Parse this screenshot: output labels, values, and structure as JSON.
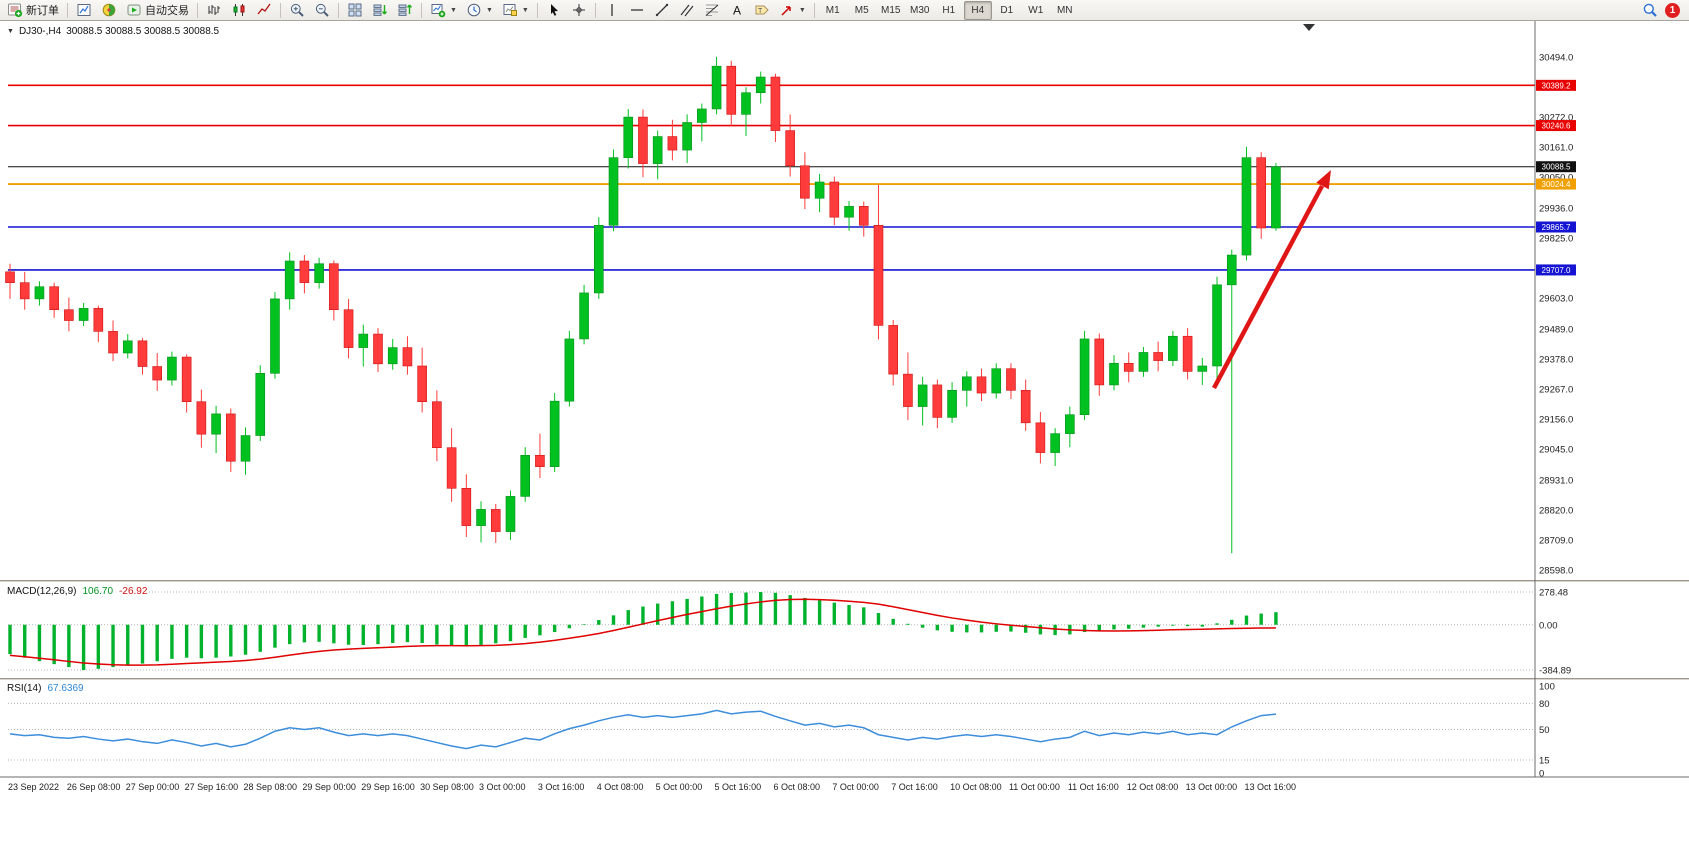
{
  "toolbar": {
    "new_order_label": "新订单",
    "autotrading_label": "自动交易",
    "timeframes": [
      "M1",
      "M5",
      "M15",
      "M30",
      "H1",
      "H4",
      "D1",
      "W1",
      "MN"
    ],
    "active_timeframe": "H4",
    "notification_count": "1"
  },
  "chart_header": {
    "symbol_period": "DJ30-,H4",
    "ohlc": "30088.5 30088.5 30088.5 30088.5"
  },
  "indicators": {
    "macd_name": "MACD(12,26,9)",
    "macd_main": "106.70",
    "macd_signal": "-26.92",
    "rsi_name": "RSI(14)",
    "rsi_value": "67.6369"
  },
  "chart_data": {
    "type": "candlestick",
    "symbol": "DJ30-",
    "timeframe": "H4",
    "current_price": 30088.5,
    "time_labels": [
      "23 Sep 2022",
      "26 Sep 08:00",
      "27 Sep 00:00",
      "27 Sep 16:00",
      "28 Sep 08:00",
      "29 Sep 00:00",
      "29 Sep 16:00",
      "30 Sep 08:00",
      "3 Oct 00:00",
      "3 Oct 16:00",
      "4 Oct 08:00",
      "5 Oct 00:00",
      "5 Oct 16:00",
      "6 Oct 08:00",
      "7 Oct 00:00",
      "7 Oct 16:00",
      "10 Oct 08:00",
      "11 Oct 00:00",
      "11 Oct 16:00",
      "12 Oct 08:00",
      "13 Oct 00:00",
      "13 Oct 16:00"
    ],
    "price_axis_ticks": [
      {
        "price": 30494.0,
        "label": "30494.0"
      },
      {
        "price": 30272.0,
        "label": "30272.0"
      },
      {
        "price": 30161.0,
        "label": "30161.0"
      },
      {
        "price": 30050.0,
        "label": "30050.0"
      },
      {
        "price": 29936.0,
        "label": "29936.0"
      },
      {
        "price": 29825.0,
        "label": "29825.0"
      },
      {
        "price": 29603.0,
        "label": "29603.0"
      },
      {
        "price": 29489.0,
        "label": "29489.0"
      },
      {
        "price": 29378.0,
        "label": "29378.0"
      },
      {
        "price": 29267.0,
        "label": "29267.0"
      },
      {
        "price": 29156.0,
        "label": "29156.0"
      },
      {
        "price": 29045.0,
        "label": "29045.0"
      },
      {
        "price": 28931.0,
        "label": "28931.0"
      },
      {
        "price": 28820.0,
        "label": "28820.0"
      },
      {
        "price": 28709.0,
        "label": "28709.0"
      },
      {
        "price": 28598.0,
        "label": "28598.0"
      }
    ],
    "horizontal_lines": [
      {
        "label": "30389.2",
        "price": 30389.2,
        "color": "#e80000",
        "width": 1.6
      },
      {
        "label": "30240.6",
        "price": 30240.6,
        "color": "#e80000",
        "width": 1.6
      },
      {
        "label": "30088.5",
        "price": 30088.5,
        "color": "#111111",
        "width": 1
      },
      {
        "label": "30024.4",
        "price": 30024.4,
        "color": "#f0a000",
        "width": 1.8
      },
      {
        "label": "29865.7",
        "price": 29865.7,
        "color": "#1414d2",
        "width": 1.6
      },
      {
        "label": "29707.0",
        "price": 29707.0,
        "color": "#1414d2",
        "width": 1.6
      }
    ],
    "candles_ohlc": [
      [
        29700,
        29730,
        29600,
        29660
      ],
      [
        29660,
        29700,
        29560,
        29600
      ],
      [
        29600,
        29665,
        29575,
        29645
      ],
      [
        29645,
        29660,
        29530,
        29560
      ],
      [
        29560,
        29605,
        29480,
        29520
      ],
      [
        29520,
        29585,
        29500,
        29565
      ],
      [
        29565,
        29575,
        29440,
        29480
      ],
      [
        29480,
        29520,
        29370,
        29400
      ],
      [
        29400,
        29470,
        29380,
        29445
      ],
      [
        29445,
        29455,
        29320,
        29350
      ],
      [
        29350,
        29400,
        29260,
        29300
      ],
      [
        29300,
        29405,
        29280,
        29385
      ],
      [
        29385,
        29395,
        29180,
        29220
      ],
      [
        29220,
        29265,
        29050,
        29100
      ],
      [
        29100,
        29205,
        29030,
        29175
      ],
      [
        29175,
        29195,
        28960,
        29000
      ],
      [
        29000,
        29125,
        28950,
        29095
      ],
      [
        29095,
        29355,
        29075,
        29325
      ],
      [
        29325,
        29625,
        29305,
        29600
      ],
      [
        29600,
        29772,
        29560,
        29740
      ],
      [
        29740,
        29762,
        29620,
        29660
      ],
      [
        29660,
        29752,
        29638,
        29730
      ],
      [
        29730,
        29742,
        29520,
        29560
      ],
      [
        29560,
        29600,
        29380,
        29420
      ],
      [
        29420,
        29505,
        29350,
        29470
      ],
      [
        29470,
        29492,
        29330,
        29360
      ],
      [
        29360,
        29452,
        29338,
        29420
      ],
      [
        29420,
        29462,
        29320,
        29352
      ],
      [
        29352,
        29420,
        29180,
        29220
      ],
      [
        29220,
        29262,
        29000,
        29050
      ],
      [
        29050,
        29122,
        28850,
        28900
      ],
      [
        28900,
        28952,
        28720,
        28762
      ],
      [
        28762,
        28852,
        28700,
        28822
      ],
      [
        28822,
        28842,
        28698,
        28740
      ],
      [
        28740,
        28892,
        28709,
        28870
      ],
      [
        28870,
        29052,
        28850,
        29022
      ],
      [
        29022,
        29102,
        28938,
        28980
      ],
      [
        28980,
        29252,
        28960,
        29222
      ],
      [
        29222,
        29482,
        29202,
        29452
      ],
      [
        29452,
        29652,
        29432,
        29622
      ],
      [
        29622,
        29902,
        29600,
        29872
      ],
      [
        29872,
        30152,
        29850,
        30122
      ],
      [
        30122,
        30302,
        30082,
        30272
      ],
      [
        30272,
        30300,
        30050,
        30100
      ],
      [
        30100,
        30222,
        30042,
        30200
      ],
      [
        30200,
        30262,
        30112,
        30150
      ],
      [
        30150,
        30282,
        30102,
        30252
      ],
      [
        30252,
        30322,
        30182,
        30302
      ],
      [
        30302,
        30494,
        30282,
        30460
      ],
      [
        30460,
        30480,
        30240,
        30282
      ],
      [
        30282,
        30382,
        30202,
        30362
      ],
      [
        30362,
        30440,
        30322,
        30420
      ],
      [
        30420,
        30432,
        30180,
        30222
      ],
      [
        30222,
        30282,
        30052,
        30092
      ],
      [
        30092,
        30142,
        29932,
        29972
      ],
      [
        29972,
        30062,
        29920,
        30032
      ],
      [
        30032,
        30052,
        29872,
        29902
      ],
      [
        29902,
        29962,
        29852,
        29942
      ],
      [
        29942,
        29960,
        29830,
        29872
      ],
      [
        29872,
        30022,
        29450,
        29502
      ],
      [
        29502,
        29522,
        29280,
        29322
      ],
      [
        29322,
        29402,
        29152,
        29202
      ],
      [
        29202,
        29312,
        29132,
        29282
      ],
      [
        29282,
        29302,
        29122,
        29162
      ],
      [
        29162,
        29292,
        29142,
        29262
      ],
      [
        29262,
        29332,
        29202,
        29312
      ],
      [
        29312,
        29342,
        29222,
        29252
      ],
      [
        29252,
        29362,
        29232,
        29342
      ],
      [
        29342,
        29362,
        29230,
        29262
      ],
      [
        29262,
        29302,
        29112,
        29142
      ],
      [
        29142,
        29182,
        28992,
        29032
      ],
      [
        29032,
        29122,
        28982,
        29102
      ],
      [
        29102,
        29202,
        29052,
        29172
      ],
      [
        29172,
        29482,
        29152,
        29452
      ],
      [
        29452,
        29472,
        29242,
        29282
      ],
      [
        29282,
        29392,
        29262,
        29362
      ],
      [
        29362,
        29402,
        29292,
        29332
      ],
      [
        29332,
        29422,
        29312,
        29402
      ],
      [
        29402,
        29442,
        29332,
        29372
      ],
      [
        29372,
        29482,
        29352,
        29462
      ],
      [
        29462,
        29492,
        29302,
        29332
      ],
      [
        29332,
        29382,
        29282,
        29352
      ],
      [
        29352,
        29682,
        29292,
        29652
      ],
      [
        29652,
        29782,
        28660,
        29762
      ],
      [
        29762,
        30162,
        29742,
        30122
      ],
      [
        30122,
        30142,
        29822,
        29862
      ],
      [
        29862,
        30102,
        29852,
        30088.5
      ]
    ],
    "macd": {
      "params": "12,26,9",
      "main_value": 106.7,
      "signal_value": -26.92,
      "axis_labels": [
        "278.48",
        "0.00",
        "-384.89"
      ],
      "axis_values": [
        278.48,
        0,
        -384.89
      ],
      "histogram": [
        -250,
        -280,
        -310,
        -335,
        -360,
        -385,
        -375,
        -360,
        -345,
        -330,
        -310,
        -290,
        -280,
        -285,
        -280,
        -270,
        -255,
        -230,
        -195,
        -165,
        -150,
        -145,
        -158,
        -170,
        -172,
        -165,
        -155,
        -148,
        -155,
        -168,
        -180,
        -185,
        -172,
        -158,
        -140,
        -112,
        -90,
        -62,
        -30,
        5,
        40,
        80,
        125,
        155,
        180,
        200,
        220,
        240,
        262,
        270,
        274,
        278,
        272,
        252,
        228,
        208,
        188,
        168,
        148,
        100,
        50,
        8,
        -25,
        -48,
        -60,
        -65,
        -65,
        -60,
        -58,
        -68,
        -82,
        -88,
        -82,
        -62,
        -50,
        -40,
        -34,
        -25,
        -16,
        -8,
        -12,
        -16,
        12,
        42,
        78,
        95,
        106.7
      ],
      "signal_line": [
        -260,
        -272,
        -285,
        -298,
        -312,
        -325,
        -334,
        -340,
        -343,
        -343,
        -341,
        -336,
        -330,
        -324,
        -318,
        -312,
        -304,
        -292,
        -276,
        -258,
        -241,
        -226,
        -215,
        -207,
        -201,
        -196,
        -190,
        -184,
        -180,
        -178,
        -178,
        -179,
        -178,
        -175,
        -169,
        -160,
        -148,
        -133,
        -115,
        -96,
        -74,
        -49,
        -21,
        7,
        35,
        62,
        88,
        112,
        136,
        158,
        177,
        194,
        207,
        215,
        217,
        214,
        208,
        200,
        190,
        175,
        153,
        129,
        104,
        80,
        58,
        39,
        22,
        8,
        -4,
        -15,
        -26,
        -36,
        -44,
        -49,
        -52,
        -53,
        -52,
        -50,
        -47,
        -43,
        -40,
        -38,
        -35,
        -32,
        -30,
        -28,
        -26.92
      ]
    },
    "rsi": {
      "period": 14,
      "value": 67.6369,
      "axis_labels": [
        "100",
        "80",
        "50",
        "15",
        "0"
      ],
      "axis_values": [
        100,
        80,
        50,
        15,
        0
      ],
      "values": [
        45,
        43,
        44,
        41,
        40,
        42,
        39,
        37,
        39,
        36,
        34,
        38,
        35,
        31,
        34,
        30,
        33,
        40,
        48,
        52,
        50,
        52,
        47,
        43,
        45,
        43,
        45,
        43,
        39,
        35,
        31,
        28,
        32,
        30,
        35,
        40,
        38,
        45,
        51,
        55,
        60,
        64,
        67,
        64,
        66,
        64,
        66,
        68,
        72,
        68,
        70,
        71,
        65,
        60,
        55,
        57,
        53,
        55,
        52,
        44,
        41,
        38,
        41,
        39,
        42,
        44,
        42,
        44,
        42,
        39,
        36,
        39,
        41,
        48,
        43,
        46,
        44,
        47,
        45,
        48,
        44,
        46,
        44,
        53,
        60,
        66,
        67.64
      ]
    },
    "trend_arrow": {
      "color": "#e01616",
      "from_price": 29350,
      "to_price": 30120
    }
  }
}
